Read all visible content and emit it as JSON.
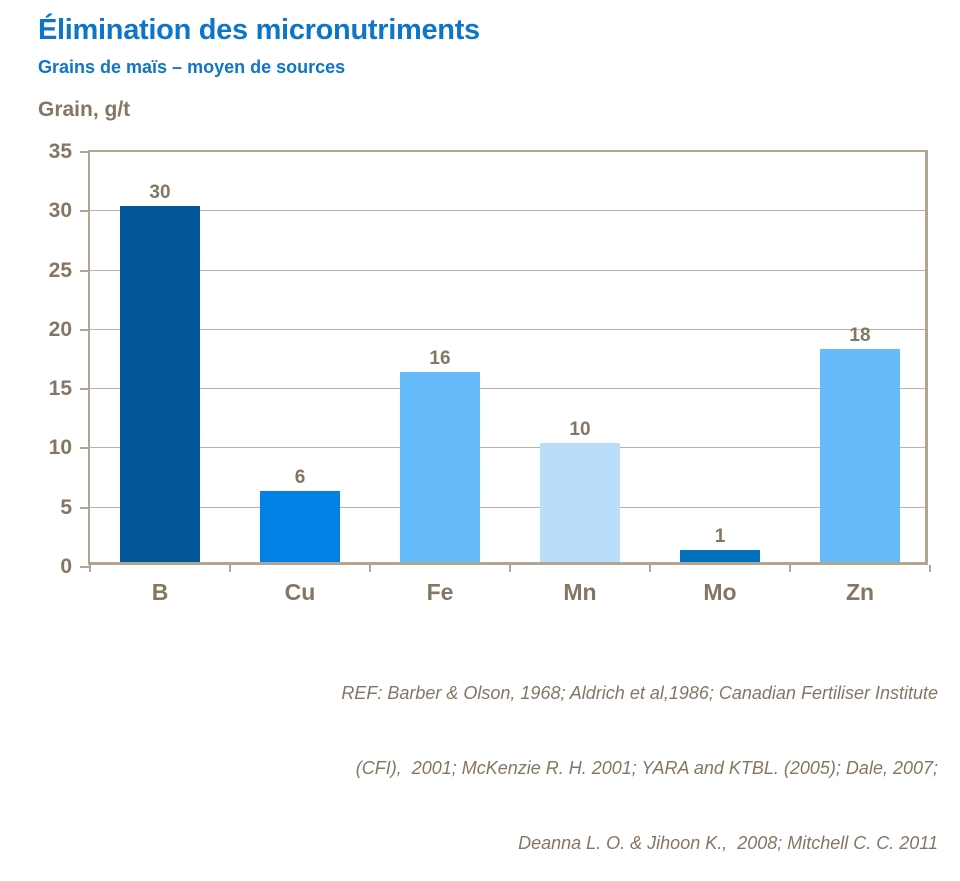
{
  "header": {
    "title": "Élimination des micronutriments",
    "subtitle": "Grains de maïs – moyen de sources"
  },
  "chart_data": {
    "type": "bar",
    "title": "Élimination des micronutriments",
    "subtitle": "Grains de maïs – moyen de sources",
    "ylabel": "Grain, g/t",
    "xlabel": "",
    "categories": [
      "B",
      "Cu",
      "Fe",
      "Mn",
      "Mo",
      "Zn"
    ],
    "values": [
      30,
      6,
      16,
      10,
      1,
      18
    ],
    "bar_colors": [
      "#02579b",
      "#0081e3",
      "#66bbfa",
      "#b8defa",
      "#0070be",
      "#66bbfa"
    ],
    "ylim": [
      0,
      35
    ],
    "yticks": [
      0,
      5,
      10,
      15,
      20,
      25,
      30,
      35
    ],
    "grid": true,
    "legend_position": "none",
    "value_labels_shown": true
  },
  "footer": {
    "ref_lines": [
      "REF: Barber & Olson, 1968; Aldrich et al,1986; Canadian Fertiliser Institute",
      "(CFI),  2001; McKenzie R. H. 2001; YARA and KTBL. (2005); Dale, 2007;",
      "Deanna L. O. & Jihoon K.,  2008; Mitchell C. C. 2011"
    ]
  },
  "colors": {
    "title_blue": "#0e76c8",
    "axis_text": "#857663",
    "gridline": "#bcb0a0",
    "plot_border": "#b3a594"
  }
}
